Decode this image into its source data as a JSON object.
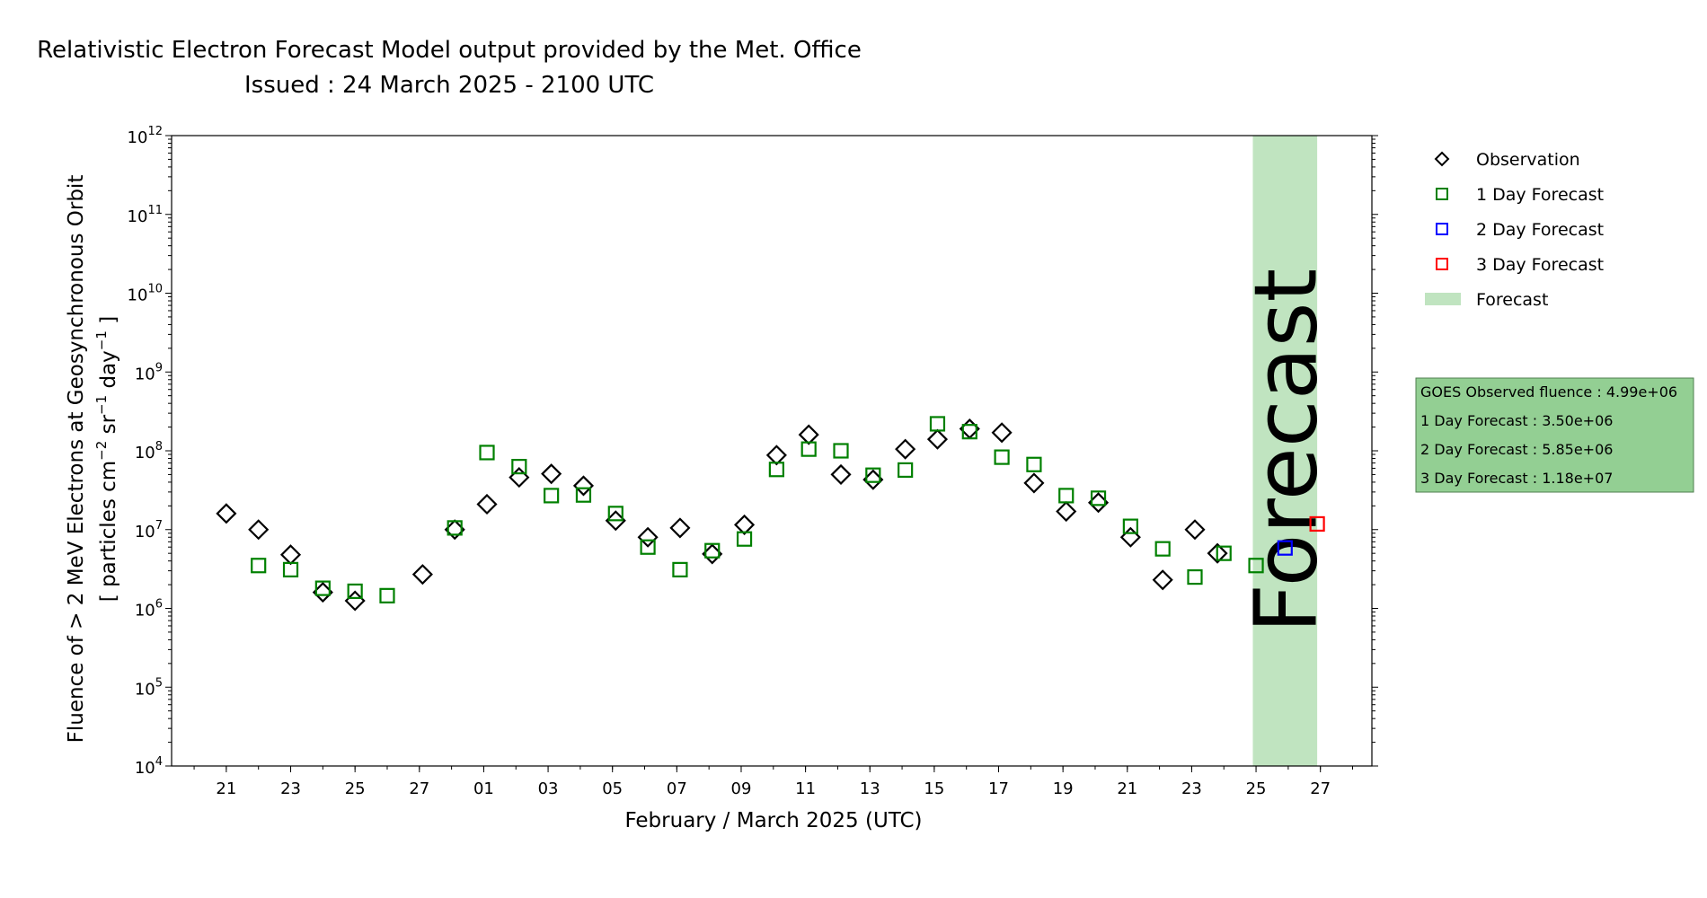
{
  "chart_data": {
    "type": "scatter",
    "title": "Relativistic Electron Forecast Model output provided by the Met. Office",
    "subtitle": "Issued : 24 March 2025 - 2100 UTC",
    "xlabel": "February / March 2025 (UTC)",
    "ylabel_line1": "Fluence of > 2 MeV Electrons at Geosynchronous Orbit",
    "ylabel_line2_a": "[ particles cm",
    "ylabel_line2_b": " sr",
    "ylabel_line2_c": " day",
    "ylabel_line2_d": " ]",
    "ylabel_exp_cm": "−2",
    "ylabel_exp_sr": "−1",
    "ylabel_exp_day": "−1",
    "yscale": "log",
    "ylim_exp": [
      4,
      12
    ],
    "ytick_exps": [
      4,
      5,
      6,
      7,
      8,
      9,
      10,
      11,
      12
    ],
    "ytick_base": "10",
    "xlim": [
      19.3,
      56.6
    ],
    "x_note": "x = day of year 2025 (Feb 1 = 32, Mar 1 = 60); ticks labelled as day of month",
    "xticks": [
      {
        "x": 21,
        "label": "21"
      },
      {
        "x": 23,
        "label": "23"
      },
      {
        "x": 25,
        "label": "25"
      },
      {
        "x": 27,
        "label": "27"
      },
      {
        "x": 29,
        "label": "01"
      },
      {
        "x": 31,
        "label": "03"
      },
      {
        "x": 33,
        "label": "05"
      },
      {
        "x": 35,
        "label": "07"
      },
      {
        "x": 37,
        "label": "09"
      },
      {
        "x": 39,
        "label": "11"
      },
      {
        "x": 41,
        "label": "13"
      },
      {
        "x": 43,
        "label": "15"
      },
      {
        "x": 45,
        "label": "17"
      },
      {
        "x": 47,
        "label": "19"
      },
      {
        "x": 49,
        "label": "21"
      },
      {
        "x": 51,
        "label": "23"
      },
      {
        "x": 53,
        "label": "25"
      },
      {
        "x": 55,
        "label": "27"
      }
    ],
    "forecast_span": [
      52.9,
      54.9
    ],
    "forecast_span_label": "Forecast",
    "series": [
      {
        "name": "Observation",
        "marker": "diamond",
        "color": "#000000",
        "points": [
          [
            21,
            16000000.0
          ],
          [
            22,
            10000000.0
          ],
          [
            23,
            4800000.0
          ],
          [
            24,
            1600000.0
          ],
          [
            25,
            1250000.0
          ],
          [
            27.1,
            2700000.0
          ],
          [
            28.1,
            10000000.0
          ],
          [
            29.1,
            21000000.0
          ],
          [
            30.1,
            46000000.0
          ],
          [
            31.1,
            51000000.0
          ],
          [
            32.1,
            36000000.0
          ],
          [
            33.1,
            13000000.0
          ],
          [
            34.1,
            8000000.0
          ],
          [
            35.1,
            10500000.0
          ],
          [
            36.1,
            4900000.0
          ],
          [
            37.1,
            11500000.0
          ],
          [
            38.1,
            88000000.0
          ],
          [
            39.1,
            160000000.0
          ],
          [
            40.1,
            50000000.0
          ],
          [
            41.1,
            43000000.0
          ],
          [
            42.1,
            105000000.0
          ],
          [
            43.1,
            140000000.0
          ],
          [
            44.1,
            190000000.0
          ],
          [
            45.1,
            170000000.0
          ],
          [
            46.1,
            39000000.0
          ],
          [
            47.1,
            17000000.0
          ],
          [
            48.1,
            22000000.0
          ],
          [
            49.1,
            8000000.0
          ],
          [
            50.1,
            2300000.0
          ],
          [
            51.1,
            10000000.0
          ],
          [
            51.8,
            5000000.0
          ]
        ]
      },
      {
        "name": "1 Day Forecast",
        "marker": "square",
        "color": "#008000",
        "points": [
          [
            22,
            3500000.0
          ],
          [
            23,
            3100000.0
          ],
          [
            24,
            1800000.0
          ],
          [
            25,
            1650000.0
          ],
          [
            26,
            1450000.0
          ],
          [
            28.1,
            10500000.0
          ],
          [
            29.1,
            95000000.0
          ],
          [
            30.1,
            63000000.0
          ],
          [
            31.1,
            27000000.0
          ],
          [
            32.1,
            27500000.0
          ],
          [
            33.1,
            16000000.0
          ],
          [
            34.1,
            6000000.0
          ],
          [
            35.1,
            3100000.0
          ],
          [
            36.1,
            5400000.0
          ],
          [
            37.1,
            7600000.0
          ],
          [
            38.1,
            58000000.0
          ],
          [
            39.1,
            105000000.0
          ],
          [
            40.1,
            100000000.0
          ],
          [
            41.1,
            49000000.0
          ],
          [
            42.1,
            57000000.0
          ],
          [
            43.1,
            220000000.0
          ],
          [
            44.1,
            175000000.0
          ],
          [
            45.1,
            83000000.0
          ],
          [
            46.1,
            67000000.0
          ],
          [
            47.1,
            27000000.0
          ],
          [
            48.1,
            25000000.0
          ],
          [
            49.1,
            11000000.0
          ],
          [
            50.1,
            5700000.0
          ],
          [
            51.1,
            2500000.0
          ],
          [
            52.0,
            5000000.0
          ],
          [
            53.0,
            3500000.0
          ]
        ]
      },
      {
        "name": "2 Day Forecast",
        "marker": "square",
        "color": "#0000ff",
        "points": [
          [
            53.9,
            5850000.0
          ]
        ]
      },
      {
        "name": "3 Day Forecast",
        "marker": "square",
        "color": "#ff0000",
        "points": [
          [
            54.9,
            11800000.0
          ]
        ]
      }
    ],
    "legend": {
      "placement": "outside-right",
      "items": [
        {
          "label": "Observation",
          "marker": "diamond",
          "color": "#000000"
        },
        {
          "label": "1 Day Forecast",
          "marker": "square",
          "color": "#008000"
        },
        {
          "label": "2 Day Forecast",
          "marker": "square",
          "color": "#0000ff"
        },
        {
          "label": "3 Day Forecast",
          "marker": "square",
          "color": "#ff0000"
        },
        {
          "label": "Forecast",
          "marker": "patch",
          "color": "#c0e4c0"
        }
      ]
    },
    "info_box": {
      "lines": [
        "GOES Observed fluence : 4.99e+06",
        "1 Day Forecast : 3.50e+06",
        "2 Day Forecast : 5.85e+06",
        "3 Day Forecast : 1.18e+07"
      ],
      "bg_color": "#93cf93"
    },
    "colors": {
      "forecast_band": "#c0e4c0",
      "forecast_text": "#8aa88a"
    }
  }
}
